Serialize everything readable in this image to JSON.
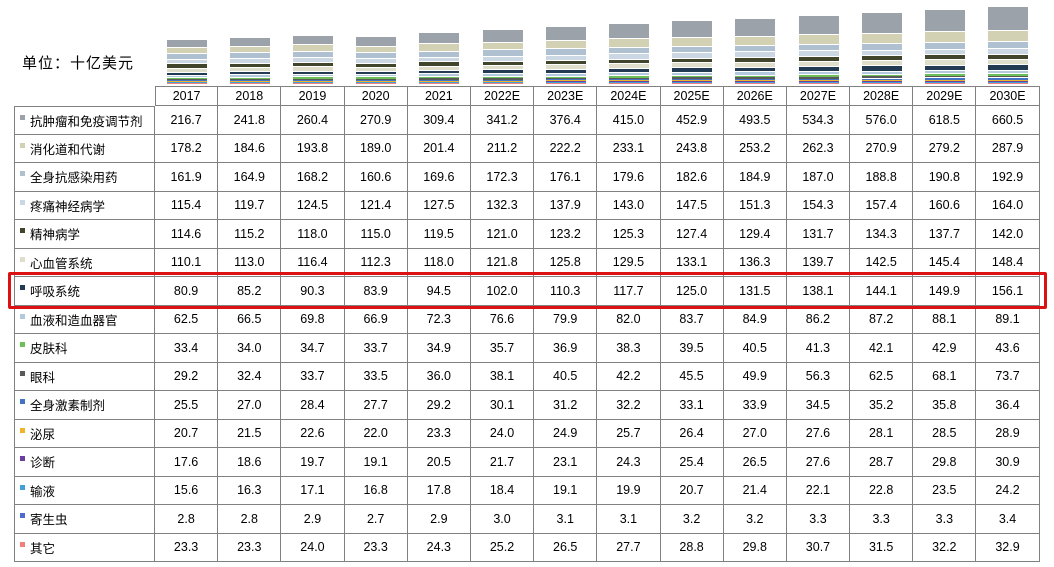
{
  "unit_label": "单位：十亿美元",
  "highlight": {
    "series": "呼吸系统",
    "row_index": 6,
    "color": "#dc1212"
  },
  "table": {
    "border_color": "#808080",
    "column_headers": [
      "2017",
      "2018",
      "2019",
      "2020",
      "2021",
      "2022E",
      "2023E",
      "2024E",
      "2025E",
      "2026E",
      "2027E",
      "2028E",
      "2029E",
      "2030E"
    ]
  },
  "chart_data": {
    "type": "bar",
    "stacked": true,
    "title": "单位：十亿美元",
    "unit_label": "单位：十亿美元",
    "legend_position": "table-row-markers",
    "grid": false,
    "categories": [
      "2017",
      "2018",
      "2019",
      "2020",
      "2021",
      "2022E",
      "2023E",
      "2024E",
      "2025E",
      "2026E",
      "2027E",
      "2028E",
      "2029E",
      "2030E"
    ],
    "series": [
      {
        "name": "抗肿瘤和免疫调节剂",
        "color": "#9ca2aa",
        "values": [
          "216.7",
          "241.8",
          "260.4",
          "270.9",
          "309.4",
          "341.2",
          "376.4",
          "415.0",
          "452.9",
          "493.5",
          "534.3",
          "576.0",
          "618.5",
          "660.5"
        ]
      },
      {
        "name": "消化道和代谢",
        "color": "#d3d1b4",
        "values": [
          "178.2",
          "184.6",
          "193.8",
          "189.0",
          "201.4",
          "211.2",
          "222.2",
          "233.1",
          "243.8",
          "253.2",
          "262.3",
          "270.9",
          "279.2",
          "287.9"
        ]
      },
      {
        "name": "全身抗感染用药",
        "color": "#afc0d1",
        "values": [
          "161.9",
          "164.9",
          "168.2",
          "160.6",
          "169.6",
          "172.3",
          "176.1",
          "179.6",
          "182.6",
          "184.9",
          "187.0",
          "188.8",
          "190.8",
          "192.9"
        ]
      },
      {
        "name": "疼痛神经病学",
        "color": "#cbd8e4",
        "values": [
          "115.4",
          "119.7",
          "124.5",
          "121.4",
          "127.5",
          "132.3",
          "137.9",
          "143.0",
          "147.5",
          "151.3",
          "154.3",
          "157.4",
          "160.6",
          "164.0"
        ]
      },
      {
        "name": "精神病学",
        "color": "#41452c",
        "values": [
          "114.6",
          "115.2",
          "118.0",
          "115.0",
          "119.5",
          "121.0",
          "123.2",
          "125.3",
          "127.4",
          "129.4",
          "131.7",
          "134.3",
          "137.7",
          "142.0"
        ]
      },
      {
        "name": "心血管系统",
        "color": "#dedecb",
        "values": [
          "110.1",
          "113.0",
          "116.4",
          "112.3",
          "118.0",
          "121.8",
          "125.8",
          "129.5",
          "133.1",
          "136.3",
          "139.7",
          "142.5",
          "145.4",
          "148.4"
        ]
      },
      {
        "name": "呼吸系统",
        "color": "#223a52",
        "values": [
          "80.9",
          "85.2",
          "90.3",
          "83.9",
          "94.5",
          "102.0",
          "110.3",
          "117.7",
          "125.0",
          "131.5",
          "138.1",
          "144.1",
          "149.9",
          "156.1"
        ]
      },
      {
        "name": "血液和造血器官",
        "color": "#b3c9dd",
        "values": [
          "62.5",
          "66.5",
          "69.8",
          "66.9",
          "72.3",
          "76.6",
          "79.9",
          "82.0",
          "83.7",
          "84.9",
          "86.2",
          "87.2",
          "88.1",
          "89.1"
        ]
      },
      {
        "name": "皮肤科",
        "color": "#6cbf59",
        "values": [
          "33.4",
          "34.0",
          "34.7",
          "33.7",
          "34.9",
          "35.7",
          "36.9",
          "38.3",
          "39.5",
          "40.5",
          "41.3",
          "42.1",
          "42.9",
          "43.6"
        ]
      },
      {
        "name": "眼科",
        "color": "#595959",
        "values": [
          "29.2",
          "32.4",
          "33.7",
          "33.5",
          "36.0",
          "38.1",
          "40.5",
          "42.2",
          "45.5",
          "49.9",
          "56.3",
          "62.5",
          "68.1",
          "73.7"
        ]
      },
      {
        "name": "全身激素制剂",
        "color": "#4472c4",
        "values": [
          "25.5",
          "27.0",
          "28.4",
          "27.7",
          "29.2",
          "30.1",
          "31.2",
          "32.2",
          "33.1",
          "33.9",
          "34.5",
          "35.2",
          "35.8",
          "36.4"
        ]
      },
      {
        "name": "泌尿",
        "color": "#f0b428",
        "values": [
          "20.7",
          "21.5",
          "22.6",
          "22.0",
          "23.3",
          "24.0",
          "24.9",
          "25.7",
          "26.4",
          "27.0",
          "27.6",
          "28.1",
          "28.5",
          "28.9"
        ]
      },
      {
        "name": "诊断",
        "color": "#6b3fa0",
        "values": [
          "17.6",
          "18.6",
          "19.7",
          "19.1",
          "20.5",
          "21.7",
          "23.1",
          "24.3",
          "25.4",
          "26.5",
          "27.6",
          "28.7",
          "29.8",
          "30.9"
        ]
      },
      {
        "name": "输液",
        "color": "#41a0d8",
        "values": [
          "15.6",
          "16.3",
          "17.1",
          "16.8",
          "17.8",
          "18.4",
          "19.1",
          "19.9",
          "20.7",
          "21.4",
          "22.1",
          "22.8",
          "23.5",
          "24.2"
        ]
      },
      {
        "name": "寄生虫",
        "color": "#4f6bd0",
        "values": [
          "2.8",
          "2.8",
          "2.9",
          "2.7",
          "2.9",
          "3.0",
          "3.1",
          "3.1",
          "3.2",
          "3.2",
          "3.3",
          "3.3",
          "3.3",
          "3.4"
        ]
      },
      {
        "name": "其它",
        "color": "#f08080",
        "values": [
          "23.3",
          "23.3",
          "24.0",
          "23.3",
          "24.3",
          "25.2",
          "26.5",
          "27.7",
          "28.8",
          "29.8",
          "30.7",
          "31.5",
          "32.2",
          "32.9"
        ]
      }
    ]
  }
}
